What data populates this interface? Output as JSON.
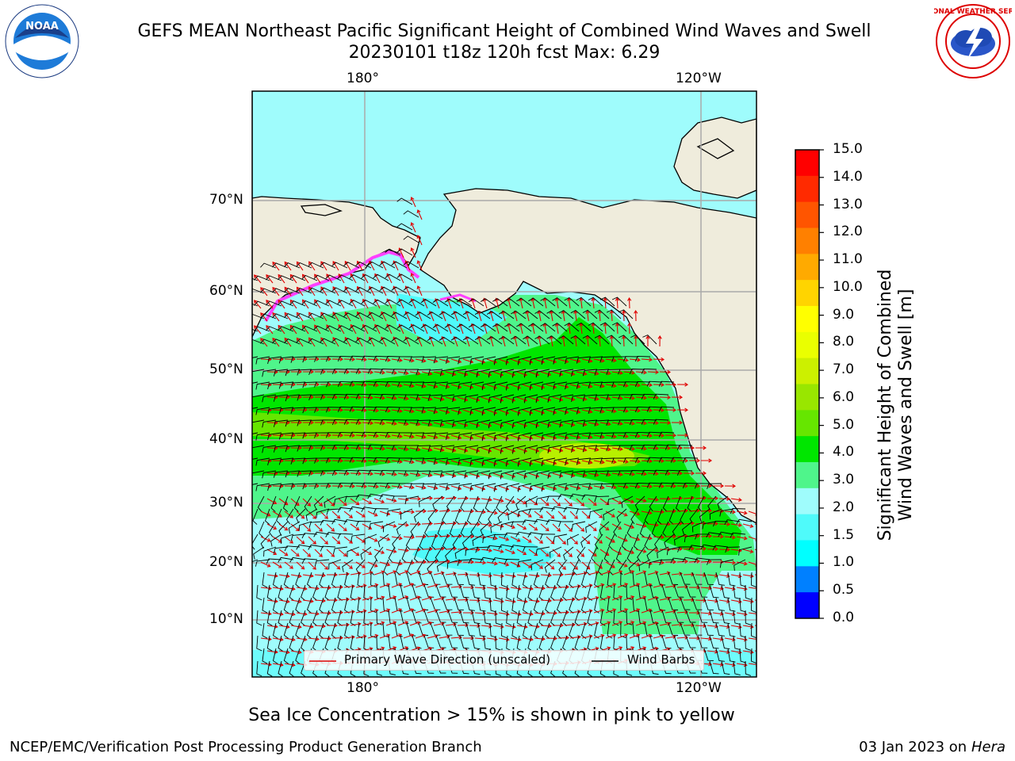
{
  "header": {
    "title_line1": "GEFS MEAN Northeast Pacific Significant Height of Combined Wind Waves and Swell",
    "title_line2": "20230101 t18z 120h fcst   Max: 6.29"
  },
  "logos": {
    "left": {
      "icon": "noaa-logo-icon",
      "text": "NOAA"
    },
    "right": {
      "icon": "nws-logo-icon",
      "text": "NATIONAL WEATHER SERVICE"
    }
  },
  "map": {
    "lon_labels_top": [
      "180°",
      "120°W"
    ],
    "lon_labels_bottom": [
      "180°",
      "120°W"
    ],
    "lat_labels": [
      "70°N",
      "60°N",
      "50°N",
      "40°N",
      "30°N",
      "20°N",
      "10°N"
    ],
    "colors": {
      "land": "#efecdc",
      "ocean_low": "#9ffcfc",
      "ocean_mid": "#4ff58b",
      "ocean_high": "#00e600",
      "ocean_peak": "#b8f000",
      "wave_arrow": "#e00000",
      "barb": "#000000",
      "sea_ice": "#ff40ff"
    }
  },
  "legend": {
    "wave_label": "Primary Wave Direction (unscaled)",
    "barb_label": "Wind Barbs"
  },
  "colorbar": {
    "title_line1": "Significant Height of Combined",
    "title_line2": "Wind Waves and Swell [m]",
    "ticks": [
      "15.0",
      "14.0",
      "13.0",
      "12.0",
      "11.0",
      "10.0",
      "9.0",
      "8.0",
      "7.0",
      "6.0",
      "5.0",
      "4.0",
      "3.0",
      "2.0",
      "1.5",
      "1.0",
      "0.5",
      "0.0"
    ],
    "colors": [
      "#ff0000",
      "#ff2a00",
      "#ff5500",
      "#ff8000",
      "#ffaa00",
      "#ffd400",
      "#ffff00",
      "#eaff00",
      "#ccf000",
      "#99e600",
      "#66e600",
      "#00e600",
      "#4ff58b",
      "#9ffcfc",
      "#4ffafa",
      "#00ffff",
      "#0080ff",
      "#0000ff"
    ]
  },
  "footer": {
    "note": "Sea Ice Concentration > 15% is shown in pink to yellow",
    "left": "NCEP/EMC/Verification Post Processing Product Generation Branch",
    "right_date": "03 Jan 2023 on ",
    "right_machine": "Hera"
  }
}
